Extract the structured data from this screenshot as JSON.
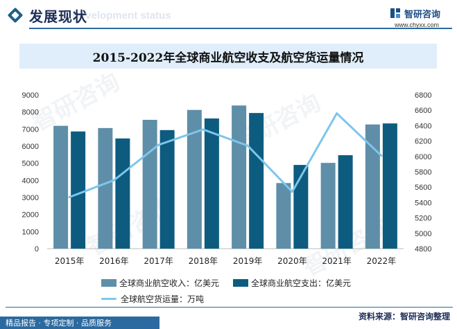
{
  "header": {
    "title": "发展现状",
    "subtitle_ghost": "Development status"
  },
  "brand": {
    "name": "智研咨询",
    "url": "www.chyxx.com",
    "watermark_text": "智研咨询"
  },
  "colors": {
    "income": "#5f8ea8",
    "expense": "#0d5c7f",
    "cargo": "#7cc6ec",
    "accent": "#2b6aa0",
    "title_band": "#dfeefa"
  },
  "chart_data": {
    "type": "bar",
    "title": "2015-2022年全球商业航空收支及航空货运量情况",
    "categories": [
      "2015年",
      "2016年",
      "2017年",
      "2018年",
      "2019年",
      "2020年",
      "2021年",
      "2022年"
    ],
    "series": [
      {
        "name": "全球商业航空收入：亿美元",
        "type": "bar",
        "axis": "left",
        "values": [
          7190,
          7060,
          7540,
          8120,
          8380,
          3840,
          5020,
          7270
        ]
      },
      {
        "name": "全球商业航空支出：亿美元",
        "type": "bar",
        "axis": "left",
        "values": [
          6860,
          6450,
          6940,
          7620,
          7940,
          4900,
          5470,
          7330
        ]
      },
      {
        "name": "全球航空货运量：万吨",
        "type": "line",
        "axis": "right",
        "values": [
          5470,
          5690,
          6150,
          6350,
          6140,
          5540,
          6560,
          6010
        ]
      }
    ],
    "y_left": {
      "min": 0,
      "max": 9000,
      "step": 1000,
      "ticks": [
        "0",
        "1000",
        "2000",
        "3000",
        "4000",
        "5000",
        "6000",
        "7000",
        "8000",
        "9000"
      ]
    },
    "y_right": {
      "min": 4800,
      "max": 6800,
      "step": 200,
      "ticks": [
        "4800",
        "5000",
        "5200",
        "5400",
        "5600",
        "5800",
        "6000",
        "6200",
        "6400",
        "6600",
        "6800"
      ]
    },
    "grid": false,
    "legend_position": "bottom"
  },
  "footer": {
    "source": "资料来源：智研咨询整理",
    "slogan": "精品报告 · 专项定制 · 品质服务"
  }
}
